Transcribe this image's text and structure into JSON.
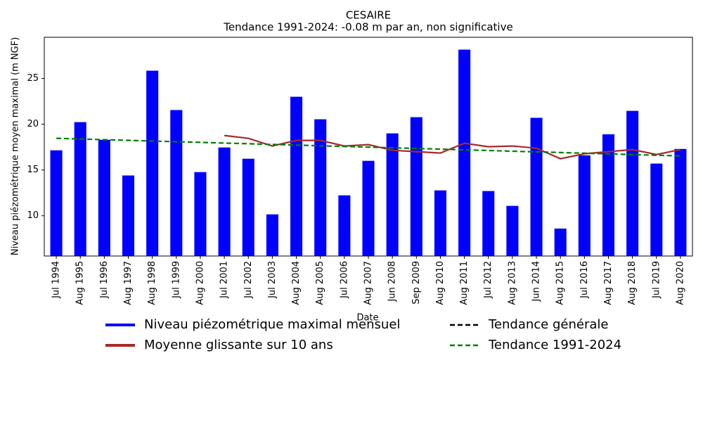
{
  "chart_data": {
    "type": "bar",
    "title": "CESAIRE",
    "subtitle": "Tendance 1991-2024: -0.08 m par an, non significative",
    "x_label": "Date",
    "y_label": "Niveau piézométrique moyen maximal (m NGF)",
    "categories": [
      "Jul 1994",
      "Aug 1995",
      "Jul 1996",
      "Aug 1997",
      "Aug 1998",
      "Jul 1999",
      "Aug 2000",
      "Jul 2001",
      "Jul 2002",
      "Jul 2003",
      "Aug 2004",
      "Aug 2005",
      "Jul 2006",
      "Aug 2007",
      "Jun 2008",
      "Sep 2009",
      "Aug 2010",
      "Aug 2011",
      "Jul 2012",
      "Aug 2013",
      "Jun 2014",
      "Aug 2015",
      "Jul 2016",
      "Aug 2017",
      "Aug 2018",
      "Jul 2019",
      "Aug 2020"
    ],
    "ylim": [
      5.6,
      29.5
    ],
    "yticks": [
      10,
      15,
      20,
      25
    ],
    "series": [
      {
        "name": "Niveau piézométrique maximal mensuel",
        "type": "bar",
        "color": "#0000ff",
        "linestyle": "solid",
        "values": [
          17.15,
          20.23,
          18.3,
          14.4,
          25.85,
          21.55,
          14.77,
          17.46,
          16.23,
          10.15,
          23.0,
          20.54,
          12.23,
          16.0,
          19.0,
          20.77,
          12.77,
          28.15,
          12.7,
          11.08,
          20.7,
          8.6,
          16.6,
          18.9,
          21.46,
          15.7,
          17.3
        ]
      },
      {
        "name": "Moyenne glissante sur 10 ans",
        "type": "line",
        "color": "#a52a2a",
        "linestyle": "solid",
        "values": [
          null,
          null,
          null,
          null,
          null,
          null,
          null,
          18.77,
          18.46,
          17.62,
          18.23,
          18.23,
          17.62,
          17.77,
          17.15,
          17.0,
          16.85,
          17.92,
          17.54,
          17.62,
          17.38,
          16.23,
          16.77,
          17.0,
          17.23,
          16.69,
          17.23
        ]
      },
      {
        "name": "Tendance générale",
        "type": "line",
        "color": "#000000",
        "linestyle": "dashed",
        "values": [
          null,
          null,
          null,
          null,
          null,
          null,
          null,
          null,
          null,
          null,
          null,
          null,
          null,
          null,
          null,
          null,
          null,
          null,
          null,
          null,
          null,
          null,
          null,
          null,
          null,
          null,
          null
        ]
      },
      {
        "name": "Tendance 1991-2024",
        "type": "line",
        "color": "#008000",
        "linestyle": "dashed",
        "values": [
          18.46,
          18.39,
          18.31,
          18.24,
          18.16,
          18.09,
          18.02,
          17.94,
          17.87,
          17.79,
          17.72,
          17.65,
          17.57,
          17.5,
          17.42,
          17.35,
          17.28,
          17.2,
          17.13,
          17.05,
          16.98,
          16.91,
          16.83,
          16.76,
          16.68,
          16.61,
          16.54
        ]
      }
    ]
  }
}
